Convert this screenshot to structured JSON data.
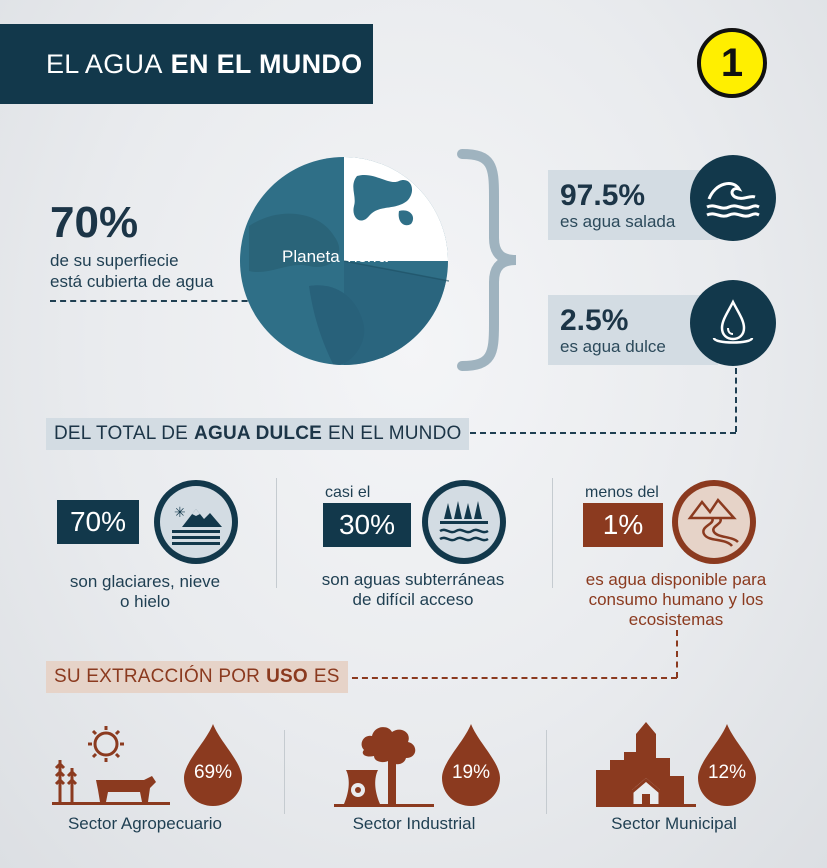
{
  "header": {
    "title_light": "EL AGUA",
    "title_bold": "EN EL MUNDO",
    "badge": "1"
  },
  "earth": {
    "pct": "70%",
    "line1": "de su superfiecie",
    "line2": "está cubierta de agua",
    "planet_label": "Planeta Tierra"
  },
  "salt": {
    "pct": "97.5%",
    "label": "es agua salada",
    "icon": "waves-icon"
  },
  "fresh": {
    "pct": "2.5%",
    "label": "es agua dulce",
    "icon": "water-drop-icon"
  },
  "section1": {
    "pre": "DEL TOTAL DE",
    "bold": "AGUA DULCE",
    "post": "EN EL MUNDO"
  },
  "freshwater": [
    {
      "prefix": "",
      "pct": "70%",
      "line1": "son glaciares, nieve",
      "line2": "o hielo",
      "line3": "",
      "icon": "glacier-icon"
    },
    {
      "prefix": "casi el",
      "pct": "30%",
      "line1": "son aguas subterráneas",
      "line2": "de difícil acceso",
      "line3": "",
      "icon": "underground-water-icon"
    },
    {
      "prefix": "menos del",
      "pct": "1%",
      "line1": "es agua disponible para",
      "line2": "consumo humano y los",
      "line3": "ecosistemas",
      "icon": "river-mountain-icon"
    }
  ],
  "section2": {
    "pre": "SU EXTRACCIÓN POR",
    "bold": "USO",
    "post": "ES"
  },
  "sectors": [
    {
      "pct": "69%",
      "label": "Sector Agropecuario",
      "icon": "farm-icon"
    },
    {
      "pct": "19%",
      "label": "Sector Industrial",
      "icon": "factory-icon"
    },
    {
      "pct": "12%",
      "label": "Sector Municipal",
      "icon": "city-icon"
    }
  ],
  "colors": {
    "navy": "#12384b",
    "blue_band": "#d3dce3",
    "brown": "#8b3a1f",
    "brown_band": "#e6d3c8",
    "earth_blue": "#2e6e86",
    "badge_yellow": "#ffef00"
  }
}
